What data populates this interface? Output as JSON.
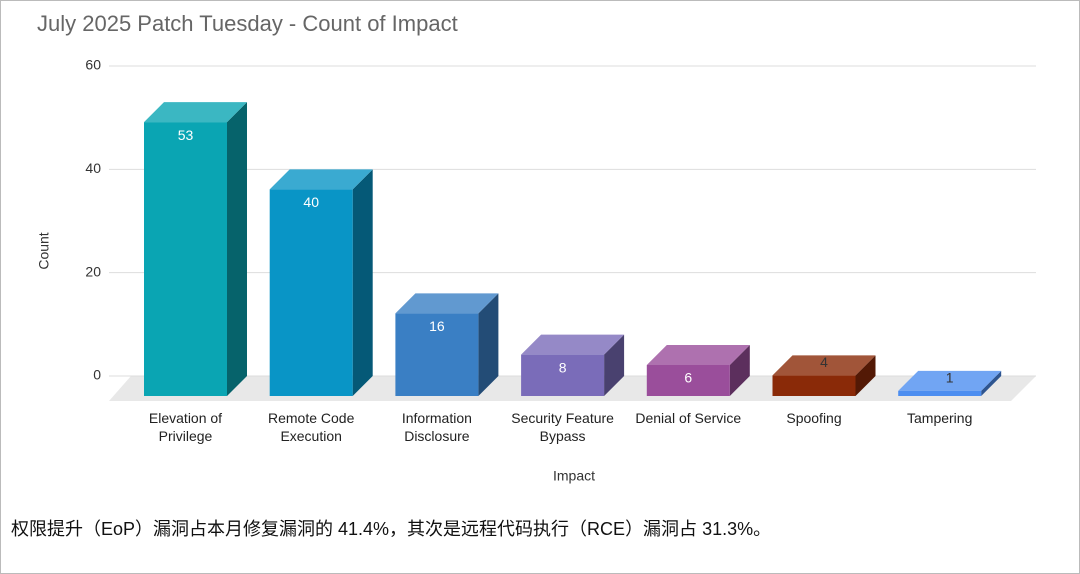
{
  "chart_data": {
    "type": "bar3d",
    "title": "July 2025 Patch Tuesday - Count of Impact",
    "categories": [
      "Elevation of Privilege",
      "Remote Code Execution",
      "Information Disclosure",
      "Security Feature Bypass",
      "Denial of Service",
      "Spoofing",
      "Tampering"
    ],
    "values": [
      53,
      40,
      16,
      8,
      6,
      4,
      1
    ],
    "colors": [
      "#0aa5b3",
      "#0995c6",
      "#3a7fc4",
      "#7a6cb9",
      "#9a4e9b",
      "#8a2a08",
      "#4d8ef0"
    ],
    "ylim": [
      0,
      60
    ],
    "yticks": [
      0,
      20,
      40,
      60
    ],
    "grid": true,
    "y_label": "Count",
    "x_label": "Impact"
  },
  "caption": "权限提升（EoP）漏洞占本月修复漏洞的 41.4%，其次是远程代码执行（RCE）漏洞占 31.3%。"
}
